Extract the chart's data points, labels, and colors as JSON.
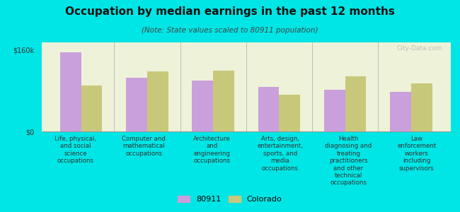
{
  "title": "Occupation by median earnings in the past 12 months",
  "subtitle": "(Note: State values scaled to 80911 population)",
  "background_color": "#00e5e5",
  "plot_bg_color": "#eef2d8",
  "categories": [
    "Life, physical,\nand social\nscience\noccupations",
    "Computer and\nmathematical\noccupations",
    "Architecture\nand\nengineering\noccupations",
    "Arts, design,\nentertainment,\nsports, and\nmedia\noccupations",
    "Health\ndiagnosing and\ntreating\npractitioners\nand other\ntechnical\noccupations",
    "Law\nenforcement\nworkers\nincluding\nsupervisors"
  ],
  "values_80911": [
    155000,
    105000,
    100000,
    88000,
    82000,
    78000
  ],
  "values_colorado": [
    90000,
    118000,
    120000,
    72000,
    108000,
    95000
  ],
  "color_80911": "#c9a0dc",
  "color_colorado": "#c8c87a",
  "ylim": [
    0,
    175000
  ],
  "yticks": [
    0,
    160000
  ],
  "ytick_labels": [
    "$0",
    "$160k"
  ],
  "legend_labels": [
    "80911",
    "Colorado"
  ],
  "watermark": "City-Data.com",
  "title_fontsize": 11,
  "subtitle_fontsize": 7.5,
  "tick_fontsize": 7,
  "label_fontsize": 6.2
}
